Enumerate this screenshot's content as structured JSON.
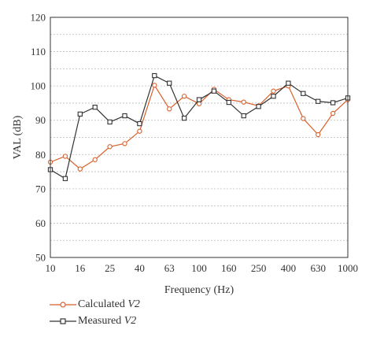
{
  "chart_data": {
    "type": "line",
    "title": "",
    "xlabel": "Frequency (Hz)",
    "ylabel": "VAL (dB)",
    "ylim": [
      50,
      120
    ],
    "yticks": [
      50,
      60,
      70,
      80,
      90,
      100,
      110,
      120
    ],
    "x_tick_labels": [
      "10",
      "16",
      "25",
      "40",
      "63",
      "100",
      "160",
      "250",
      "400",
      "630",
      "1000"
    ],
    "x_scale": "log",
    "grid": "horizontal dotted",
    "categories": [
      "10",
      "12.5",
      "16",
      "20",
      "25",
      "31.5",
      "40",
      "50",
      "63",
      "80",
      "100",
      "125",
      "160",
      "200",
      "250",
      "315",
      "400",
      "500",
      "630",
      "800",
      "1000"
    ],
    "series": [
      {
        "name_prefix": "Calculated",
        "name_italic": "V2",
        "color": "#d8602a",
        "marker": "circle",
        "values": [
          77.8,
          79.5,
          75.8,
          78.5,
          82.3,
          83.2,
          86.8,
          100.2,
          93.3,
          97.0,
          94.8,
          99.0,
          96.0,
          95.3,
          94.2,
          98.5,
          100.0,
          90.5,
          85.8,
          92.0,
          96.0
        ]
      },
      {
        "name_prefix": "Measured",
        "name_italic": "V2",
        "color": "#333333",
        "marker": "square",
        "values": [
          75.6,
          73.0,
          91.8,
          93.8,
          89.5,
          91.3,
          89.0,
          103.0,
          100.8,
          90.6,
          96.0,
          98.5,
          95.2,
          91.3,
          94.0,
          97.0,
          100.8,
          97.8,
          95.5,
          95.1,
          96.5
        ]
      }
    ],
    "legend_position": "bottom-left"
  }
}
